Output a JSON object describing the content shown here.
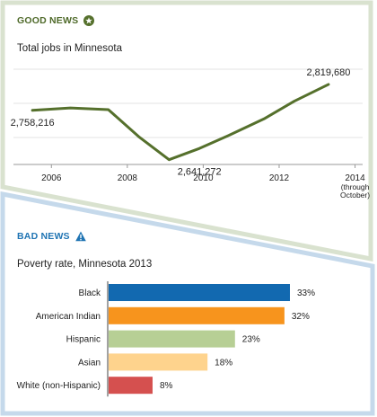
{
  "good": {
    "heading": "GOOD NEWS",
    "icon": "star-icon",
    "accent": "#55702c",
    "subtitle": "Total jobs in Minnesota"
  },
  "bad": {
    "heading": "BAD NEWS",
    "icon": "warning-icon",
    "accent": "#1f74b3",
    "subtitle": "Poverty rate, Minnesota 2013"
  },
  "chart_data": [
    {
      "type": "line",
      "title": "Total jobs in Minnesota",
      "x": [
        2005.5,
        2006.5,
        2007.5,
        2008.3,
        2009.1,
        2009.9,
        2010.7,
        2011.6,
        2012.4,
        2013.3
      ],
      "series": [
        {
          "values": [
            2758216,
            2764000,
            2760000,
            2696000,
            2641272,
            2668000,
            2700000,
            2738000,
            2780000,
            2819680
          ]
        }
      ],
      "xticks": [
        {
          "x": 2006,
          "label": "2006"
        },
        {
          "x": 2008,
          "label": "2008"
        },
        {
          "x": 2010,
          "label": "2010"
        },
        {
          "x": 2012,
          "label": "2012"
        },
        {
          "x": 2014,
          "label": "2014\n(through\nOctober)"
        }
      ],
      "annotations": [
        {
          "text": "2,758,216",
          "x": 2005.5,
          "y": 2758216,
          "pos": "below"
        },
        {
          "text": "2,641,272",
          "x": 2009.9,
          "y": 2641272,
          "pos": "below"
        },
        {
          "text": "2,819,680",
          "x": 2013.3,
          "y": 2819680,
          "pos": "above"
        }
      ],
      "xlim": [
        2005,
        2014.2
      ],
      "ylim": [
        2630000,
        2860000
      ],
      "grid": true,
      "color": "#55702c",
      "xlabel": "",
      "ylabel": ""
    },
    {
      "type": "bar",
      "orientation": "horizontal",
      "title": "Poverty rate, Minnesota 2013",
      "categories": [
        "Black",
        "American Indian",
        "Hispanic",
        "Asian",
        "White (non-Hispanic)"
      ],
      "values": [
        33,
        32,
        23,
        18,
        8
      ],
      "value_labels": [
        "33%",
        "32%",
        "23%",
        "18%",
        "8%"
      ],
      "colors": [
        "#1269b0",
        "#f7941d",
        "#b7cf95",
        "#fed38d",
        "#d5504f"
      ],
      "xlim": [
        0,
        33
      ],
      "xlabel": "",
      "ylabel": ""
    }
  ]
}
